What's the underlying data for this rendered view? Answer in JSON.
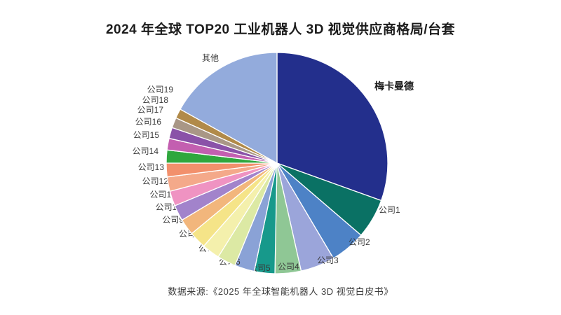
{
  "page": {
    "title": "2024 年全球 TOP20 工业机器人 3D 视觉供应商格局/台套",
    "source": "数据来源:《2025 年全球智能机器人 3D 视觉白皮书》",
    "background": "#ffffff"
  },
  "chart_data": {
    "type": "pie",
    "title": "2024 年全球 TOP20 工业机器人 3D 视觉供应商格局/台套",
    "note": "no numeric value labels shown; values are percents estimated from arc angles",
    "start_angle_deg": 0,
    "clockwise": true,
    "legend_position": "labels around slices",
    "series": [
      {
        "name": "梅卡曼德",
        "value": 30.5,
        "color": "#232f8c",
        "emphasized_label": true
      },
      {
        "name": "公司1",
        "value": 5.8,
        "color": "#0a7164"
      },
      {
        "name": "公司2",
        "value": 5.2,
        "color": "#4d82c6"
      },
      {
        "name": "公司3",
        "value": 5.0,
        "color": "#9ba5da"
      },
      {
        "name": "公司4",
        "value": 3.8,
        "color": "#8fc795"
      },
      {
        "name": "公司5",
        "value": 3.0,
        "color": "#17998b"
      },
      {
        "name": "公司6",
        "value": 2.9,
        "color": "#8aa2d6"
      },
      {
        "name": "公司7",
        "value": 2.7,
        "color": "#dce9a4"
      },
      {
        "name": "公司8",
        "value": 2.6,
        "color": "#f4f0ac"
      },
      {
        "name": "公司9",
        "value": 2.5,
        "color": "#f5e488"
      },
      {
        "name": "公司10",
        "value": 2.4,
        "color": "#f2b67c"
      },
      {
        "name": "公司11",
        "value": 2.3,
        "color": "#a283cb"
      },
      {
        "name": "公司12",
        "value": 2.2,
        "color": "#ef93c2"
      },
      {
        "name": "公司13",
        "value": 2.1,
        "color": "#f4a98a"
      },
      {
        "name": "公司14",
        "value": 2.0,
        "color": "#f2906c"
      },
      {
        "name": "公司15",
        "value": 1.9,
        "color": "#2fa73d"
      },
      {
        "name": "公司16",
        "value": 1.7,
        "color": "#c35fb0"
      },
      {
        "name": "公司17",
        "value": 1.6,
        "color": "#8a52a8"
      },
      {
        "name": "公司18",
        "value": 1.5,
        "color": "#a99786"
      },
      {
        "name": "公司19",
        "value": 1.4,
        "color": "#b18a49"
      },
      {
        "name": "其他",
        "value": 16.9,
        "color": "#93abdc"
      }
    ]
  }
}
